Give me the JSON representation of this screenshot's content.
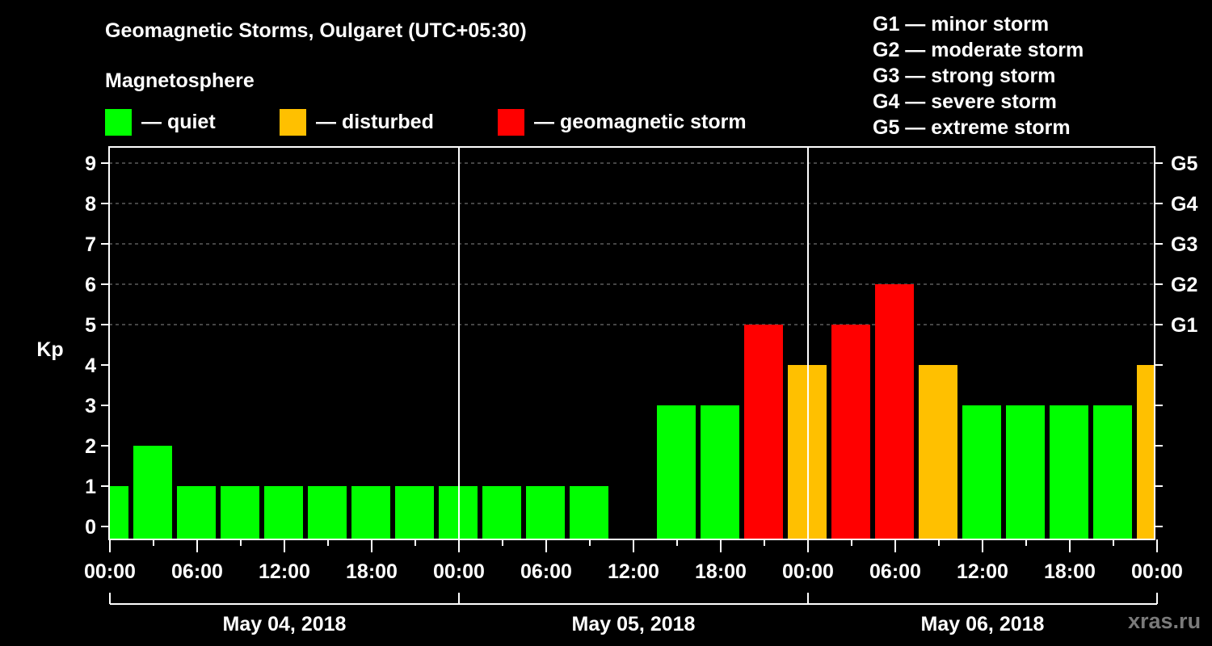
{
  "header": {
    "title": "Geomagnetic Storms, Oulgaret (UTC+05:30)",
    "subtitle": "Magnetosphere"
  },
  "legend": {
    "items": [
      {
        "label": "— quiet",
        "color": "#00ff00"
      },
      {
        "label": "— disturbed",
        "color": "#ffc000"
      },
      {
        "label": "— geomagnetic storm",
        "color": "#ff0000"
      }
    ]
  },
  "storm_scale": {
    "items": [
      {
        "label": "G1 — minor storm"
      },
      {
        "label": "G2 — moderate storm"
      },
      {
        "label": "G3 — strong storm"
      },
      {
        "label": "G4 — severe storm"
      },
      {
        "label": "G5 — extreme storm"
      }
    ]
  },
  "watermark": "xras.ru",
  "chart_data": {
    "type": "bar",
    "title": "Geomagnetic Storms, Oulgaret (UTC+05:30)",
    "subtitle": "Magnetosphere",
    "ylabel": "Kp",
    "xlabel": "",
    "ylim": [
      0,
      9
    ],
    "yticks": [
      0,
      1,
      2,
      3,
      4,
      5,
      6,
      7,
      8,
      9
    ],
    "right_axis_labels": [
      {
        "kp": 5,
        "label": "G1"
      },
      {
        "kp": 6,
        "label": "G2"
      },
      {
        "kp": 7,
        "label": "G3"
      },
      {
        "kp": 8,
        "label": "G4"
      },
      {
        "kp": 9,
        "label": "G5"
      }
    ],
    "grid": "dashed horizontal at Kp 5-9",
    "x_tick_labels": [
      "00:00",
      "06:00",
      "12:00",
      "18:00",
      "00:00",
      "06:00",
      "12:00",
      "18:00",
      "00:00",
      "06:00",
      "12:00",
      "18:00",
      "00:00"
    ],
    "dates": [
      "May 04, 2018",
      "May 05, 2018",
      "May 06, 2018"
    ],
    "x_range_hours": [
      0,
      72
    ],
    "colors": {
      "quiet": "#00ff00",
      "disturbed": "#ffc000",
      "storm": "#ff0000"
    },
    "bars": [
      {
        "start_h": 0.0,
        "end_h": 1.5,
        "kp": 1,
        "level": "quiet"
      },
      {
        "start_h": 1.5,
        "end_h": 4.5,
        "kp": 2,
        "level": "quiet"
      },
      {
        "start_h": 4.5,
        "end_h": 7.5,
        "kp": 1,
        "level": "quiet"
      },
      {
        "start_h": 7.5,
        "end_h": 10.5,
        "kp": 1,
        "level": "quiet"
      },
      {
        "start_h": 10.5,
        "end_h": 13.5,
        "kp": 1,
        "level": "quiet"
      },
      {
        "start_h": 13.5,
        "end_h": 16.5,
        "kp": 1,
        "level": "quiet"
      },
      {
        "start_h": 16.5,
        "end_h": 19.5,
        "kp": 1,
        "level": "quiet"
      },
      {
        "start_h": 19.5,
        "end_h": 22.5,
        "kp": 1,
        "level": "quiet"
      },
      {
        "start_h": 22.5,
        "end_h": 25.5,
        "kp": 1,
        "level": "quiet"
      },
      {
        "start_h": 25.5,
        "end_h": 28.5,
        "kp": 1,
        "level": "quiet"
      },
      {
        "start_h": 28.5,
        "end_h": 31.5,
        "kp": 1,
        "level": "quiet"
      },
      {
        "start_h": 31.5,
        "end_h": 34.5,
        "kp": 1,
        "level": "quiet"
      },
      {
        "start_h": 34.5,
        "end_h": 37.5,
        "kp": null,
        "level": "no-data"
      },
      {
        "start_h": 37.5,
        "end_h": 40.5,
        "kp": 3,
        "level": "quiet"
      },
      {
        "start_h": 40.5,
        "end_h": 43.5,
        "kp": 3,
        "level": "quiet"
      },
      {
        "start_h": 43.5,
        "end_h": 46.5,
        "kp": 5,
        "level": "storm"
      },
      {
        "start_h": 46.5,
        "end_h": 49.5,
        "kp": 4,
        "level": "disturbed"
      },
      {
        "start_h": 49.5,
        "end_h": 52.5,
        "kp": 5,
        "level": "storm"
      },
      {
        "start_h": 52.5,
        "end_h": 55.5,
        "kp": 6,
        "level": "storm"
      },
      {
        "start_h": 55.5,
        "end_h": 58.5,
        "kp": 4,
        "level": "disturbed"
      },
      {
        "start_h": 58.5,
        "end_h": 61.5,
        "kp": 3,
        "level": "quiet"
      },
      {
        "start_h": 61.5,
        "end_h": 64.5,
        "kp": 3,
        "level": "quiet"
      },
      {
        "start_h": 64.5,
        "end_h": 67.5,
        "kp": 3,
        "level": "quiet"
      },
      {
        "start_h": 67.5,
        "end_h": 70.5,
        "kp": 3,
        "level": "quiet"
      },
      {
        "start_h": 70.5,
        "end_h": 72.0,
        "kp": 4,
        "level": "disturbed"
      }
    ]
  }
}
